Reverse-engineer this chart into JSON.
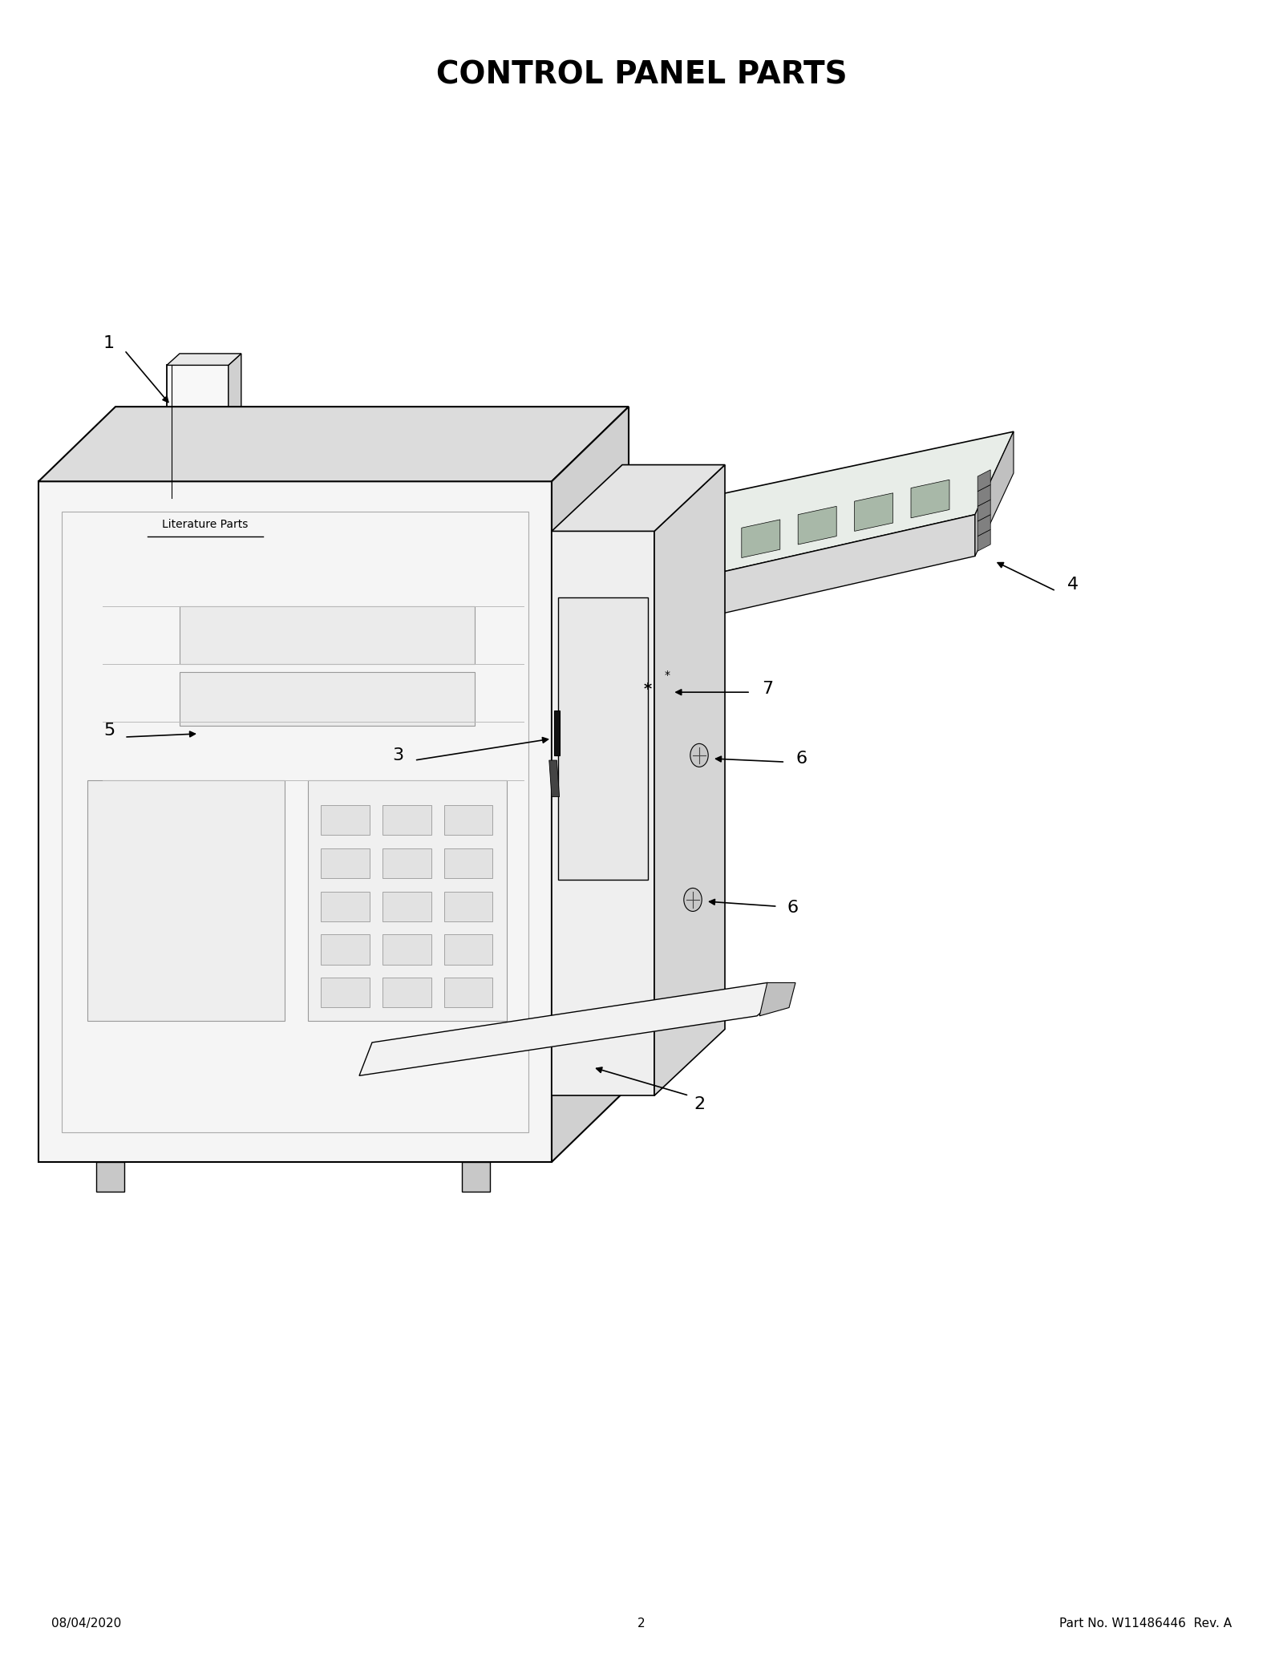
{
  "title": "CONTROL PANEL PARTS",
  "background_color": "#ffffff",
  "text_color": "#000000",
  "footer_left": "08/04/2020",
  "footer_center": "2",
  "footer_right": "Part No. W11486446  Rev. A",
  "lit_parts_label": "Literature Parts",
  "title_fontsize": 28,
  "label_fontsize": 16,
  "footer_fontsize": 11
}
